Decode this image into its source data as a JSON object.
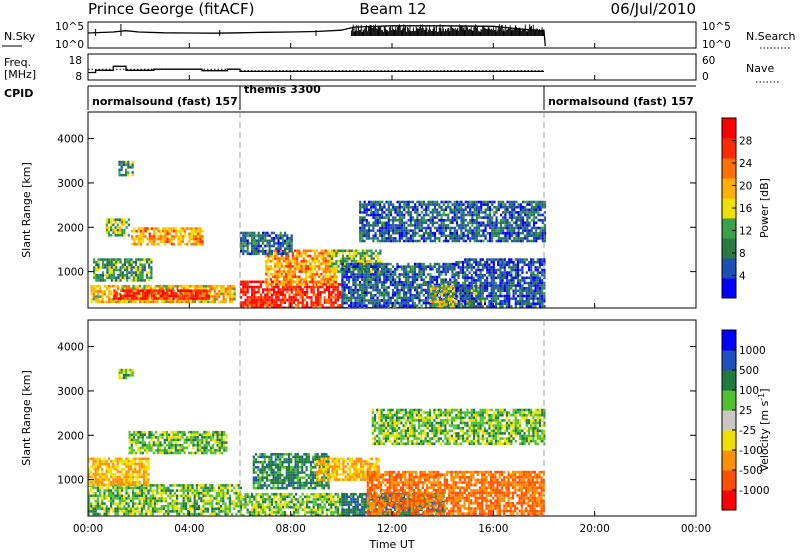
{
  "header": {
    "station": "Prince George (fitACF)",
    "beam": "Beam 12",
    "date": "06/Jul/2010"
  },
  "sky_panel": {
    "left_label": "N.Sky",
    "left_ticks": [
      "10^5",
      "10^0"
    ],
    "right_ticks": [
      "10^5",
      "10^0"
    ],
    "right_label": "N.Search"
  },
  "freq_panel": {
    "left_label_line1": "Freq.",
    "left_label_line2": "[MHz]",
    "left_ticks": [
      "18",
      "8"
    ],
    "right_ticks": [
      "60",
      "0"
    ],
    "right_label": "Nave"
  },
  "cpid": {
    "label": "CPID",
    "segments": [
      {
        "name": "normalsound (fast) 157",
        "start": 0.0,
        "end": 6.0
      },
      {
        "name": "themis 3300",
        "start": 6.0,
        "end": 18.0
      },
      {
        "name": "normalsound (fast) 157",
        "start": 18.0,
        "end": 24.0
      }
    ]
  },
  "time_axis": {
    "label": "Time UT",
    "ticks": [
      "00:00",
      "04:00",
      "08:00",
      "12:00",
      "16:00",
      "20:00",
      "00:00"
    ]
  },
  "colors": {
    "power_scale": [
      "#0000ff",
      "#1e4fb4",
      "#2a7a44",
      "#3aa04a",
      "#f0e000",
      "#ffb000",
      "#ff7000",
      "#ff2a00",
      "#ff0000"
    ],
    "velocity_scale": [
      "#0000ff",
      "#2050c0",
      "#207a40",
      "#50c030",
      "#c8c8c0",
      "#f0e000",
      "#ff9000",
      "#ff5000",
      "#ff0000"
    ]
  },
  "chart_data": [
    {
      "type": "line",
      "title": "",
      "xlabel": "",
      "ylabel": "N.Sky",
      "yscale": "log",
      "xlim": [
        0,
        24
      ],
      "ylim": [
        1,
        100000
      ],
      "series": [
        {
          "name": "N.Sky",
          "x": [
            0,
            0.5,
            1,
            1.5,
            2,
            3,
            4,
            5,
            6,
            7,
            8,
            9,
            10,
            10.5,
            12,
            14,
            16,
            17,
            18,
            18.05
          ],
          "values": [
            900,
            1200,
            1500,
            3000,
            1500,
            1000,
            900,
            800,
            1000,
            1300,
            1500,
            2000,
            4000,
            20000,
            40000,
            40000,
            30000,
            8000,
            2500,
            1
          ]
        }
      ]
    },
    {
      "type": "line",
      "title": "",
      "xlabel": "",
      "ylabel": "Freq. [MHz]",
      "xlim": [
        0,
        24
      ],
      "ylim": [
        8,
        18
      ],
      "right_axis": {
        "label": "Nave",
        "ylim": [
          0,
          60
        ]
      },
      "series": [
        {
          "name": "Freq.",
          "x": [
            0,
            0.3,
            0.3,
            1.0,
            1.0,
            1.5,
            1.5,
            2.6,
            2.6,
            4.5,
            4.5,
            5.5,
            5.5,
            6.0,
            6.0,
            18.0
          ],
          "values": [
            10.5,
            10.5,
            11.5,
            11.5,
            13.3,
            13.3,
            11.5,
            11.5,
            12.0,
            12.0,
            11.3,
            11.3,
            12.0,
            12.0,
            11.0,
            11.0
          ]
        },
        {
          "name": "Nave",
          "x": [
            0,
            6,
            6,
            18
          ],
          "values": [
            24,
            24,
            20,
            20
          ]
        }
      ]
    },
    {
      "type": "heatmap",
      "title": "",
      "xlabel": "",
      "ylabel": "Slant Range [km]",
      "xlim": [
        0,
        24
      ],
      "ylim": [
        180,
        4600
      ],
      "yticks": [
        1000,
        2000,
        3000,
        4000
      ],
      "colorbar": {
        "label": "Power [dB]",
        "ticks": [
          "28",
          "24",
          "20",
          "16",
          "12",
          "8",
          "4"
        ],
        "range": [
          0,
          30
        ]
      },
      "series": [
        {
          "name": "",
          "x": [
            0.1,
            5.8
          ],
          "range_km": [
            300,
            700
          ],
          "value": 18
        },
        {
          "name": "",
          "x": [
            1.0,
            4.8
          ],
          "range_km": [
            400,
            600
          ],
          "value": 27
        },
        {
          "name": "",
          "x": [
            0.2,
            2.5
          ],
          "range_km": [
            800,
            1300
          ],
          "value": 10
        },
        {
          "name": "",
          "x": [
            1.7,
            4.5
          ],
          "range_km": [
            1600,
            2000
          ],
          "value": 20
        },
        {
          "name": "",
          "x": [
            0.7,
            1.6
          ],
          "range_km": [
            1800,
            2200
          ],
          "value": 12
        },
        {
          "name": "",
          "x": [
            1.2,
            1.8
          ],
          "range_km": [
            3200,
            3500
          ],
          "value": 8
        },
        {
          "name": "",
          "x": [
            6.0,
            10.0
          ],
          "range_km": [
            200,
            800
          ],
          "value": 28
        },
        {
          "name": "",
          "x": [
            7.0,
            9.8
          ],
          "range_km": [
            700,
            1500
          ],
          "value": 20
        },
        {
          "name": "",
          "x": [
            6.0,
            8.0
          ],
          "range_km": [
            1400,
            1900
          ],
          "value": 6
        },
        {
          "name": "",
          "x": [
            9.5,
            11.5
          ],
          "range_km": [
            1000,
            1500
          ],
          "value": 12
        },
        {
          "name": "",
          "x": [
            10.0,
            14.5
          ],
          "range_km": [
            200,
            1200
          ],
          "value": 5
        },
        {
          "name": "",
          "x": [
            13.5,
            15.5
          ],
          "range_km": [
            200,
            700
          ],
          "value": 15
        },
        {
          "name": "",
          "x": [
            14.5,
            18.0
          ],
          "range_km": [
            200,
            1300
          ],
          "value": 4
        },
        {
          "name": "",
          "x": [
            10.7,
            18.0
          ],
          "range_km": [
            1700,
            2600
          ],
          "value": 5
        }
      ]
    },
    {
      "type": "heatmap",
      "title": "",
      "xlabel": "Time UT",
      "ylabel": "Slant Range [km]",
      "xlim": [
        0,
        24
      ],
      "ylim": [
        180,
        4600
      ],
      "yticks": [
        1000,
        2000,
        3000,
        4000
      ],
      "colorbar": {
        "label": "Velocity [m s^-1]",
        "ticks": [
          "1000",
          "500",
          "100",
          "25",
          "-25",
          "-100",
          "-500",
          "-1000"
        ],
        "range": [
          -1000,
          1000
        ]
      },
      "series": [
        {
          "name": "",
          "x": [
            0.0,
            6.0
          ],
          "range_km": [
            200,
            900
          ],
          "value": 0
        },
        {
          "name": "",
          "x": [
            0.0,
            2.4
          ],
          "range_km": [
            900,
            1500
          ],
          "value": -100
        },
        {
          "name": "",
          "x": [
            1.6,
            5.5
          ],
          "range_km": [
            1600,
            2100
          ],
          "value": 0
        },
        {
          "name": "",
          "x": [
            6.0,
            10.0
          ],
          "range_km": [
            200,
            700
          ],
          "value": 0
        },
        {
          "name": "",
          "x": [
            6.5,
            9.5
          ],
          "range_km": [
            800,
            1600
          ],
          "value": 60
        },
        {
          "name": "",
          "x": [
            9.0,
            11.5
          ],
          "range_km": [
            1000,
            1500
          ],
          "value": -100
        },
        {
          "name": "",
          "x": [
            10.0,
            14.0
          ],
          "range_km": [
            200,
            700
          ],
          "value": 80
        },
        {
          "name": "",
          "x": [
            11.0,
            18.0
          ],
          "range_km": [
            200,
            1200
          ],
          "value": -500
        },
        {
          "name": "",
          "x": [
            11.2,
            18.0
          ],
          "range_km": [
            1800,
            2600
          ],
          "value": 0
        },
        {
          "name": "",
          "x": [
            1.2,
            1.8
          ],
          "range_km": [
            3300,
            3500
          ],
          "value": 0
        }
      ]
    }
  ]
}
